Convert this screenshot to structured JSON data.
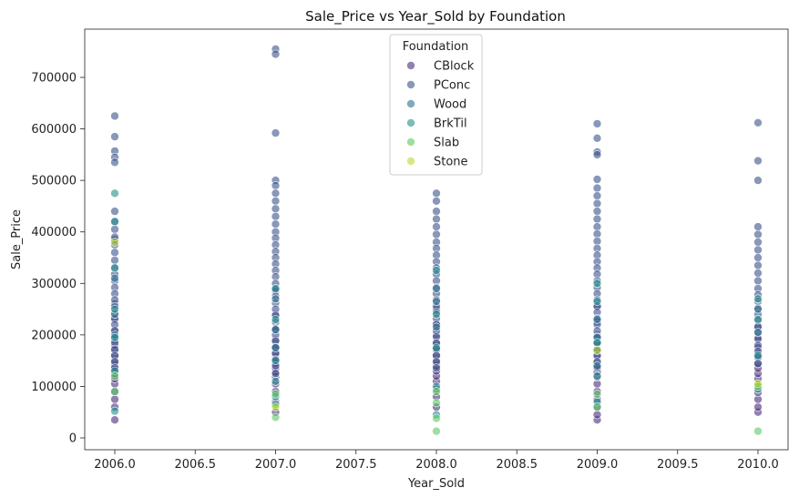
{
  "chart_data": {
    "type": "scatter",
    "title": "Sale_Price vs Year_Sold by Foundation",
    "xlabel": "Year_Sold",
    "ylabel": "Sale_Price",
    "xlim": [
      1995.8,
      2010.2
    ],
    "ylim": [
      -22000,
      790000
    ],
    "x_ticks": [
      2006.0,
      2006.5,
      2007.0,
      2007.5,
      2008.0,
      2008.5,
      2009.0,
      2009.5,
      2010.0
    ],
    "x_tick_labels": [
      "2006.0",
      "2006.5",
      "2007.0",
      "2007.5",
      "2008.0",
      "2008.5",
      "2009.0",
      "2009.5",
      "2010.0"
    ],
    "y_ticks": [
      0,
      100000,
      200000,
      300000,
      400000,
      500000,
      600000,
      700000
    ],
    "y_tick_labels": [
      "0",
      "100000",
      "200000",
      "300000",
      "400000",
      "500000",
      "600000",
      "700000"
    ],
    "grid": false,
    "legend": {
      "title": "Foundation",
      "placement": "top-center"
    },
    "series": [
      {
        "name": "CBlock",
        "color": "#472d7b",
        "points": [
          [
            2006,
            35000
          ],
          [
            2006,
            60000
          ],
          [
            2006,
            75000
          ],
          [
            2006,
            90000
          ],
          [
            2006,
            105000
          ],
          [
            2006,
            115000
          ],
          [
            2006,
            125000
          ],
          [
            2006,
            132000
          ],
          [
            2006,
            140000
          ],
          [
            2006,
            150000
          ],
          [
            2006,
            160000
          ],
          [
            2006,
            170000
          ],
          [
            2006,
            180000
          ],
          [
            2006,
            190000
          ],
          [
            2006,
            210000
          ],
          [
            2006,
            230000
          ],
          [
            2006,
            260000
          ],
          [
            2006,
            385000
          ],
          [
            2007,
            50000
          ],
          [
            2007,
            70000
          ],
          [
            2007,
            90000
          ],
          [
            2007,
            105000
          ],
          [
            2007,
            118000
          ],
          [
            2007,
            128000
          ],
          [
            2007,
            135000
          ],
          [
            2007,
            145000
          ],
          [
            2007,
            155000
          ],
          [
            2007,
            165000
          ],
          [
            2007,
            175000
          ],
          [
            2007,
            190000
          ],
          [
            2007,
            210000
          ],
          [
            2007,
            240000
          ],
          [
            2007,
            285000
          ],
          [
            2008,
            60000
          ],
          [
            2008,
            80000
          ],
          [
            2008,
            95000
          ],
          [
            2008,
            110000
          ],
          [
            2008,
            120000
          ],
          [
            2008,
            130000
          ],
          [
            2008,
            140000
          ],
          [
            2008,
            150000
          ],
          [
            2008,
            160000
          ],
          [
            2008,
            172000
          ],
          [
            2008,
            185000
          ],
          [
            2008,
            200000
          ],
          [
            2008,
            220000
          ],
          [
            2008,
            250000
          ],
          [
            2009,
            35000
          ],
          [
            2009,
            45000
          ],
          [
            2009,
            60000
          ],
          [
            2009,
            75000
          ],
          [
            2009,
            90000
          ],
          [
            2009,
            105000
          ],
          [
            2009,
            118000
          ],
          [
            2009,
            128000
          ],
          [
            2009,
            138000
          ],
          [
            2009,
            148000
          ],
          [
            2009,
            158000
          ],
          [
            2009,
            170000
          ],
          [
            2009,
            185000
          ],
          [
            2009,
            200000
          ],
          [
            2009,
            225000
          ],
          [
            2009,
            255000
          ],
          [
            2010,
            50000
          ],
          [
            2010,
            60000
          ],
          [
            2010,
            75000
          ],
          [
            2010,
            88000
          ],
          [
            2010,
            100000
          ],
          [
            2010,
            115000
          ],
          [
            2010,
            125000
          ],
          [
            2010,
            135000
          ],
          [
            2010,
            145000
          ],
          [
            2010,
            160000
          ],
          [
            2010,
            175000
          ],
          [
            2010,
            195000
          ],
          [
            2010,
            215000
          ]
        ]
      },
      {
        "name": "PConc",
        "color": "#3b528b",
        "points": [
          [
            2006,
            625000
          ],
          [
            2006,
            585000
          ],
          [
            2006,
            557000
          ],
          [
            2006,
            545000
          ],
          [
            2006,
            535000
          ],
          [
            2006,
            440000
          ],
          [
            2006,
            420000
          ],
          [
            2006,
            405000
          ],
          [
            2006,
            390000
          ],
          [
            2006,
            375000
          ],
          [
            2006,
            360000
          ],
          [
            2006,
            345000
          ],
          [
            2006,
            330000
          ],
          [
            2006,
            318000
          ],
          [
            2006,
            305000
          ],
          [
            2006,
            292000
          ],
          [
            2006,
            280000
          ],
          [
            2006,
            268000
          ],
          [
            2006,
            255000
          ],
          [
            2006,
            243000
          ],
          [
            2006,
            232000
          ],
          [
            2006,
            220000
          ],
          [
            2006,
            208000
          ],
          [
            2006,
            196000
          ],
          [
            2006,
            185000
          ],
          [
            2006,
            172000
          ],
          [
            2006,
            160000
          ],
          [
            2006,
            148000
          ],
          [
            2006,
            136000
          ],
          [
            2007,
            755000
          ],
          [
            2007,
            745000
          ],
          [
            2007,
            592000
          ],
          [
            2007,
            500000
          ],
          [
            2007,
            490000
          ],
          [
            2007,
            475000
          ],
          [
            2007,
            460000
          ],
          [
            2007,
            445000
          ],
          [
            2007,
            430000
          ],
          [
            2007,
            415000
          ],
          [
            2007,
            400000
          ],
          [
            2007,
            388000
          ],
          [
            2007,
            375000
          ],
          [
            2007,
            362000
          ],
          [
            2007,
            350000
          ],
          [
            2007,
            338000
          ],
          [
            2007,
            325000
          ],
          [
            2007,
            313000
          ],
          [
            2007,
            300000
          ],
          [
            2007,
            288000
          ],
          [
            2007,
            275000
          ],
          [
            2007,
            262000
          ],
          [
            2007,
            250000
          ],
          [
            2007,
            238000
          ],
          [
            2007,
            225000
          ],
          [
            2007,
            212000
          ],
          [
            2007,
            200000
          ],
          [
            2007,
            188000
          ],
          [
            2007,
            176000
          ],
          [
            2007,
            164000
          ],
          [
            2007,
            152000
          ],
          [
            2007,
            140000
          ],
          [
            2007,
            125000
          ],
          [
            2008,
            475000
          ],
          [
            2008,
            460000
          ],
          [
            2008,
            440000
          ],
          [
            2008,
            425000
          ],
          [
            2008,
            410000
          ],
          [
            2008,
            395000
          ],
          [
            2008,
            380000
          ],
          [
            2008,
            368000
          ],
          [
            2008,
            355000
          ],
          [
            2008,
            342000
          ],
          [
            2008,
            330000
          ],
          [
            2008,
            318000
          ],
          [
            2008,
            305000
          ],
          [
            2008,
            292000
          ],
          [
            2008,
            280000
          ],
          [
            2008,
            268000
          ],
          [
            2008,
            256000
          ],
          [
            2008,
            244000
          ],
          [
            2008,
            232000
          ],
          [
            2008,
            220000
          ],
          [
            2008,
            208000
          ],
          [
            2008,
            196000
          ],
          [
            2008,
            184000
          ],
          [
            2008,
            172000
          ],
          [
            2008,
            160000
          ],
          [
            2008,
            148000
          ],
          [
            2008,
            136000
          ],
          [
            2009,
            610000
          ],
          [
            2009,
            582000
          ],
          [
            2009,
            555000
          ],
          [
            2009,
            550000
          ],
          [
            2009,
            502000
          ],
          [
            2009,
            485000
          ],
          [
            2009,
            470000
          ],
          [
            2009,
            455000
          ],
          [
            2009,
            440000
          ],
          [
            2009,
            425000
          ],
          [
            2009,
            410000
          ],
          [
            2009,
            396000
          ],
          [
            2009,
            382000
          ],
          [
            2009,
            368000
          ],
          [
            2009,
            355000
          ],
          [
            2009,
            342000
          ],
          [
            2009,
            330000
          ],
          [
            2009,
            318000
          ],
          [
            2009,
            305000
          ],
          [
            2009,
            292000
          ],
          [
            2009,
            280000
          ],
          [
            2009,
            268000
          ],
          [
            2009,
            256000
          ],
          [
            2009,
            244000
          ],
          [
            2009,
            232000
          ],
          [
            2009,
            220000
          ],
          [
            2009,
            208000
          ],
          [
            2009,
            196000
          ],
          [
            2009,
            184000
          ],
          [
            2009,
            172000
          ],
          [
            2009,
            160000
          ],
          [
            2009,
            148000
          ],
          [
            2009,
            136000
          ],
          [
            2010,
            612000
          ],
          [
            2010,
            538000
          ],
          [
            2010,
            500000
          ],
          [
            2010,
            410000
          ],
          [
            2010,
            395000
          ],
          [
            2010,
            380000
          ],
          [
            2010,
            365000
          ],
          [
            2010,
            350000
          ],
          [
            2010,
            335000
          ],
          [
            2010,
            320000
          ],
          [
            2010,
            305000
          ],
          [
            2010,
            290000
          ],
          [
            2010,
            278000
          ],
          [
            2010,
            265000
          ],
          [
            2010,
            252000
          ],
          [
            2010,
            240000
          ],
          [
            2010,
            228000
          ],
          [
            2010,
            216000
          ],
          [
            2010,
            204000
          ],
          [
            2010,
            192000
          ],
          [
            2010,
            180000
          ],
          [
            2010,
            168000
          ],
          [
            2010,
            156000
          ],
          [
            2010,
            144000
          ]
        ]
      },
      {
        "name": "Wood",
        "color": "#2c728e",
        "points": [
          [
            2006,
            240000
          ],
          [
            2006,
            310000
          ],
          [
            2006,
            200000
          ],
          [
            2007,
            210000
          ],
          [
            2007,
            270000
          ],
          [
            2007,
            175000
          ],
          [
            2008,
            215000
          ],
          [
            2008,
            265000
          ],
          [
            2008,
            290000
          ],
          [
            2009,
            230000
          ],
          [
            2009,
            195000
          ],
          [
            2009,
            140000
          ],
          [
            2010,
            250000
          ],
          [
            2010,
            205000
          ]
        ]
      },
      {
        "name": "BrkTil",
        "color": "#21918c",
        "points": [
          [
            2006,
            52000
          ],
          [
            2006,
            130000
          ],
          [
            2006,
            195000
          ],
          [
            2006,
            250000
          ],
          [
            2006,
            330000
          ],
          [
            2006,
            420000
          ],
          [
            2006,
            475000
          ],
          [
            2007,
            65000
          ],
          [
            2007,
            80000
          ],
          [
            2007,
            110000
          ],
          [
            2007,
            150000
          ],
          [
            2007,
            230000
          ],
          [
            2007,
            290000
          ],
          [
            2008,
            45000
          ],
          [
            2008,
            100000
          ],
          [
            2008,
            175000
          ],
          [
            2008,
            240000
          ],
          [
            2008,
            325000
          ],
          [
            2009,
            70000
          ],
          [
            2009,
            120000
          ],
          [
            2009,
            185000
          ],
          [
            2009,
            265000
          ],
          [
            2009,
            300000
          ],
          [
            2010,
            95000
          ],
          [
            2010,
            160000
          ],
          [
            2010,
            230000
          ],
          [
            2010,
            270000
          ]
        ]
      },
      {
        "name": "Slab",
        "color": "#5ec962",
        "points": [
          [
            2006,
            90000
          ],
          [
            2006,
            120000
          ],
          [
            2007,
            40000
          ],
          [
            2007,
            85000
          ],
          [
            2008,
            13000
          ],
          [
            2008,
            38000
          ],
          [
            2008,
            68000
          ],
          [
            2008,
            90000
          ],
          [
            2009,
            60000
          ],
          [
            2009,
            85000
          ],
          [
            2010,
            13000
          ],
          [
            2010,
            100000
          ]
        ]
      },
      {
        "name": "Stone",
        "color": "#b5de2b",
        "points": [
          [
            2006,
            380000
          ],
          [
            2007,
            60000
          ],
          [
            2009,
            170000
          ],
          [
            2010,
            105000
          ]
        ]
      }
    ]
  }
}
